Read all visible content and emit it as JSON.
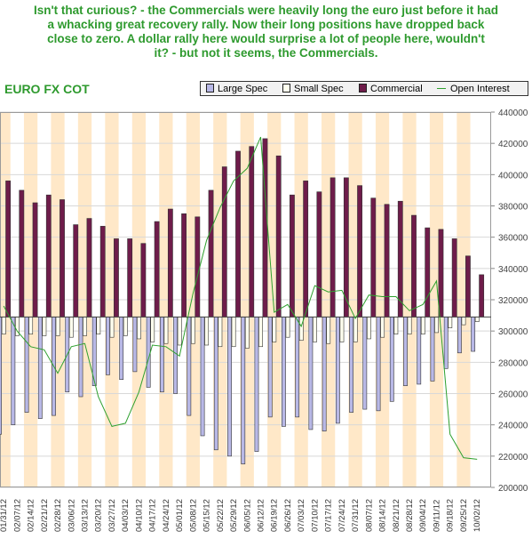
{
  "caption": {
    "lines": [
      "Isn't that curious? - the Commercials were heavily long the euro just before it had",
      "a whacking great recovery rally. Now their long positions have dropped back",
      "close to zero. A dollar rally here would surprise a lot of people here, wouldn't",
      "it? -  but not it seems, the Commercials."
    ]
  },
  "colors": {
    "large_spec": "#b8b8e6",
    "small_spec": "#ffffee",
    "commercial": "#6e1c4a",
    "open_interest": "#2ea02e",
    "band": "#ffe8c8",
    "title_text": "#2e9a2e"
  },
  "chart_data": {
    "type": "bar",
    "title": "EURO FX COT",
    "legend": {
      "placement": "top",
      "entries": [
        "Large Spec",
        "Small Spec",
        "Commercial",
        "Open Interest"
      ]
    },
    "categories": [
      "01/31/12",
      "02/07/12",
      "02/14/12",
      "02/21/12",
      "02/28/12",
      "03/06/12",
      "03/13/12",
      "03/20/12",
      "03/27/12",
      "04/03/12",
      "04/10/12",
      "04/17/12",
      "04/24/12",
      "05/01/12",
      "05/08/12",
      "05/15/12",
      "05/22/12",
      "05/29/12",
      "06/05/12",
      "06/12/12",
      "06/19/12",
      "06/26/12",
      "07/03/12",
      "07/10/12",
      "07/17/12",
      "07/24/12",
      "07/31/12",
      "08/07/12",
      "08/14/12",
      "08/21/12",
      "08/28/12",
      "09/04/12",
      "09/11/12",
      "09/18/12",
      "09/25/12",
      "10/02/12"
    ],
    "x_tick_labels": [
      "01/31/12",
      "02/07/12",
      "02/14/12",
      "02/21/12",
      "02/28/12",
      "03/06/12",
      "03/13/12",
      "03/20/12",
      "03/27/12",
      "04/03/12",
      "04/10/12",
      "04/17/12",
      "04/24/12",
      "05/01/12",
      "05/08/12",
      "05/15/12",
      "05/22/12",
      "05/29/12",
      "06/05/12",
      "06/12/12",
      "06/19/12",
      "06/26/12",
      "07/03/12",
      "07/10/12",
      "07/17/12",
      "07/24/12",
      "07/31/12",
      "08/07/12",
      "08/14/12",
      "08/21/12",
      "08/28/12",
      "09/04/12",
      "09/11/12",
      "09/18/12",
      "09/25/12",
      "10/02/12"
    ],
    "y_right": {
      "range": [
        200000,
        440000
      ],
      "ticks": [
        "200000",
        "220000",
        "240000",
        "260000",
        "280000",
        "300000",
        "320000",
        "340000",
        "360000",
        "380000",
        "400000",
        "420000",
        "440000"
      ]
    },
    "baseline": 309000,
    "series": [
      {
        "name": "Large Spec",
        "type": "bar",
        "values": [
          234000,
          240000,
          248000,
          244000,
          246000,
          261000,
          258000,
          265000,
          272000,
          269000,
          274000,
          264000,
          261000,
          260000,
          246000,
          233000,
          224000,
          220000,
          215000,
          223000,
          245000,
          239000,
          245000,
          237000,
          236000,
          241000,
          248000,
          250000,
          249000,
          255000,
          265000,
          266000,
          268000,
          276000,
          286000,
          287000
        ]
      },
      {
        "name": "Small Spec",
        "type": "bar",
        "values": [
          298000,
          297000,
          298000,
          297000,
          297000,
          296000,
          297000,
          298000,
          296000,
          297000,
          295000,
          293000,
          292000,
          291000,
          292000,
          291000,
          290000,
          290000,
          289000,
          290000,
          293000,
          296000,
          294000,
          293000,
          292000,
          293000,
          293000,
          295000,
          296000,
          298000,
          298000,
          298000,
          299000,
          302000,
          304000,
          306000
        ]
      },
      {
        "name": "Commercial",
        "type": "bar",
        "values": [
          396000,
          390000,
          382000,
          387000,
          384000,
          368000,
          372000,
          367000,
          359000,
          359000,
          356000,
          370000,
          378000,
          375000,
          373000,
          390000,
          405000,
          415000,
          418000,
          423000,
          412000,
          387000,
          396000,
          389000,
          398000,
          398000,
          393000,
          385000,
          381000,
          383000,
          374000,
          366000,
          365000,
          359000,
          348000,
          336000
        ]
      },
      {
        "name": "Open Interest",
        "type": "line",
        "values": [
          316000,
          300000,
          290000,
          288000,
          273000,
          290000,
          292000,
          258000,
          239000,
          241000,
          261000,
          291000,
          290000,
          284000,
          324000,
          358000,
          379000,
          396000,
          404000,
          424000,
          312000,
          317000,
          303000,
          329000,
          325000,
          326000,
          308000,
          323000,
          322000,
          322000,
          313000,
          317000,
          332000,
          234000,
          219000,
          218000
        ]
      }
    ]
  }
}
